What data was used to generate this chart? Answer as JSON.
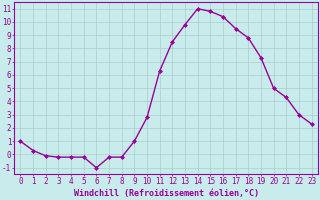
{
  "x": [
    0,
    1,
    2,
    3,
    4,
    5,
    6,
    7,
    8,
    9,
    10,
    11,
    12,
    13,
    14,
    15,
    16,
    17,
    18,
    19,
    20,
    21,
    22,
    23
  ],
  "y": [
    1,
    0.3,
    -0.1,
    -0.2,
    -0.2,
    -0.2,
    -1.0,
    -0.2,
    -0.2,
    1.0,
    2.8,
    6.3,
    8.5,
    9.8,
    11.0,
    10.8,
    10.4,
    9.5,
    8.8,
    7.3,
    5.0,
    4.3,
    3.0,
    2.3
  ],
  "line_color": "#990099",
  "marker": "D",
  "marker_size": 2.0,
  "bg_color": "#c8ecec",
  "grid_color": "#aacccc",
  "xlabel": "Windchill (Refroidissement éolien,°C)",
  "ylabel": "",
  "xlim": [
    -0.5,
    23.5
  ],
  "ylim": [
    -1.5,
    11.5
  ],
  "xticks": [
    0,
    1,
    2,
    3,
    4,
    5,
    6,
    7,
    8,
    9,
    10,
    11,
    12,
    13,
    14,
    15,
    16,
    17,
    18,
    19,
    20,
    21,
    22,
    23
  ],
  "yticks": [
    -1,
    0,
    1,
    2,
    3,
    4,
    5,
    6,
    7,
    8,
    9,
    10,
    11
  ],
  "label_fontsize": 6.0,
  "tick_fontsize": 5.5,
  "line_width": 1.0
}
